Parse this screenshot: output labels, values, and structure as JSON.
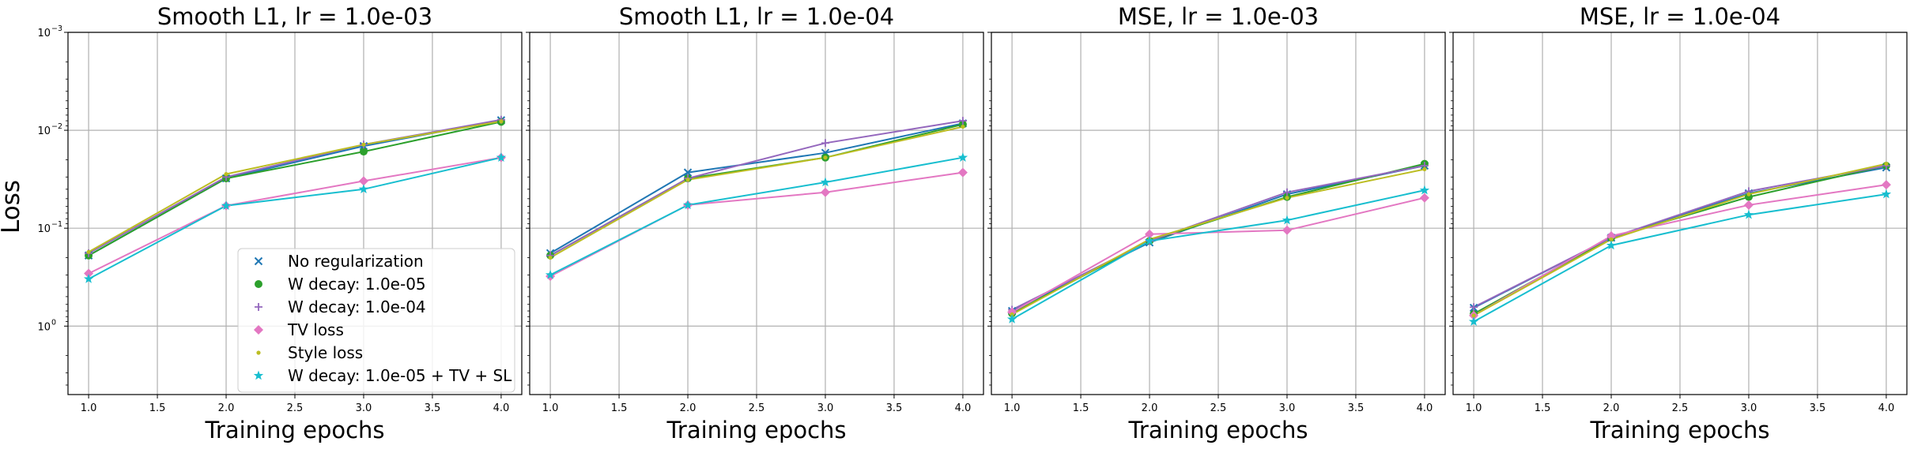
{
  "figure": {
    "ylabel": "Loss",
    "xlabel": "Training epochs",
    "xticks": [
      "1.0",
      "1.5",
      "2.0",
      "2.5",
      "3.0",
      "3.5",
      "4.0"
    ],
    "yticks": [
      {
        "exp": 0,
        "label": "10",
        "sup": "0"
      },
      {
        "exp": -1,
        "label": "10",
        "sup": "−1"
      },
      {
        "exp": -2,
        "label": "10",
        "sup": "−2"
      },
      {
        "exp": -3,
        "label": "10",
        "sup": "−3"
      }
    ]
  },
  "legend": {
    "location": "lower right of first panel",
    "entries": [
      {
        "label": "No regularization",
        "color": "#1f77b4",
        "marker": "x"
      },
      {
        "label": "W decay: 1.0e-05",
        "color": "#2ca02c",
        "marker": "o"
      },
      {
        "label": "W decay: 1.0e-04",
        "color": "#9467bd",
        "marker": "+"
      },
      {
        "label": "TV loss",
        "color": "#e377c2",
        "marker": "D"
      },
      {
        "label": "Style loss",
        "color": "#bcbd22",
        "marker": "."
      },
      {
        "label": "W decay: 1.0e-05 + TV + SL",
        "color": "#17becf",
        "marker": "*"
      }
    ]
  },
  "chart_data": [
    {
      "type": "line",
      "title": "Smooth L1, lr = 1.0e-03",
      "xlabel": "Training epochs",
      "ylabel": "Loss",
      "yscale": "log (inverted: 10^0 at bottom, 10^-3 at top)",
      "xlim": [
        0.85,
        4.15
      ],
      "ylim": [
        5,
        0.001
      ],
      "grid": true,
      "x": [
        1,
        2,
        3,
        4
      ],
      "series": [
        {
          "name": "No regularization",
          "values": [
            0.19,
            0.031,
            0.0145,
            0.0079
          ]
        },
        {
          "name": "W decay: 1.0e-05",
          "values": [
            0.19,
            0.031,
            0.0165,
            0.0082
          ]
        },
        {
          "name": "W decay: 1.0e-04",
          "values": [
            0.18,
            0.03,
            0.014,
            0.0078
          ]
        },
        {
          "name": "TV loss",
          "values": [
            0.29,
            0.059,
            0.033,
            0.019
          ]
        },
        {
          "name": "Style loss",
          "values": [
            0.175,
            0.028,
            0.014,
            0.0081
          ]
        },
        {
          "name": "W decay: 1.0e-05 + TV + SL",
          "values": [
            0.33,
            0.059,
            0.04,
            0.019
          ]
        }
      ]
    },
    {
      "type": "line",
      "title": "Smooth L1, lr = 1.0e-04",
      "xlabel": "Training epochs",
      "ylabel": "Loss",
      "yscale": "log (inverted)",
      "xlim": [
        0.85,
        4.15
      ],
      "ylim": [
        5,
        0.001
      ],
      "grid": true,
      "x": [
        1,
        2,
        3,
        4
      ],
      "series": [
        {
          "name": "No regularization",
          "values": [
            0.18,
            0.027,
            0.017,
            0.0085
          ]
        },
        {
          "name": "W decay: 1.0e-05",
          "values": [
            0.19,
            0.031,
            0.019,
            0.0087
          ]
        },
        {
          "name": "W decay: 1.0e-04",
          "values": [
            0.19,
            0.031,
            0.0135,
            0.008
          ]
        },
        {
          "name": "TV loss",
          "values": [
            0.31,
            0.058,
            0.043,
            0.027
          ]
        },
        {
          "name": "Style loss",
          "values": [
            0.2,
            0.032,
            0.019,
            0.0092
          ]
        },
        {
          "name": "W decay: 1.0e-05 + TV + SL",
          "values": [
            0.3,
            0.058,
            0.034,
            0.019
          ]
        }
      ]
    },
    {
      "type": "line",
      "title": "MSE, lr = 1.0e-03",
      "xlabel": "Training epochs",
      "ylabel": "Loss",
      "yscale": "log (inverted)",
      "xlim": [
        0.85,
        4.15
      ],
      "ylim": [
        5,
        0.001
      ],
      "grid": true,
      "x": [
        1,
        2,
        3,
        4
      ],
      "series": [
        {
          "name": "No regularization",
          "values": [
            0.7,
            0.14,
            0.045,
            0.023
          ]
        },
        {
          "name": "W decay: 1.0e-05",
          "values": [
            0.74,
            0.135,
            0.048,
            0.022
          ]
        },
        {
          "name": "W decay: 1.0e-04",
          "values": [
            0.68,
            0.135,
            0.043,
            0.023
          ]
        },
        {
          "name": "TV loss",
          "values": [
            0.72,
            0.115,
            0.105,
            0.049
          ]
        },
        {
          "name": "Style loss",
          "values": [
            0.76,
            0.13,
            0.049,
            0.025
          ]
        },
        {
          "name": "W decay: 1.0e-05 + TV + SL",
          "values": [
            0.85,
            0.135,
            0.083,
            0.041
          ]
        }
      ]
    },
    {
      "type": "line",
      "title": "MSE, lr = 1.0e-04",
      "xlabel": "Training epochs",
      "ylabel": "Loss",
      "yscale": "log (inverted)",
      "xlim": [
        0.85,
        4.15
      ],
      "ylim": [
        5,
        0.001
      ],
      "grid": true,
      "x": [
        1,
        2,
        3,
        4
      ],
      "series": [
        {
          "name": "No regularization",
          "values": [
            0.65,
            0.125,
            0.044,
            0.024
          ]
        },
        {
          "name": "W decay: 1.0e-05",
          "values": [
            0.75,
            0.125,
            0.048,
            0.023
          ]
        },
        {
          "name": "W decay: 1.0e-04",
          "values": [
            0.64,
            0.125,
            0.042,
            0.023
          ]
        },
        {
          "name": "TV loss",
          "values": [
            0.78,
            0.12,
            0.058,
            0.036
          ]
        },
        {
          "name": "Style loss",
          "values": [
            0.78,
            0.13,
            0.045,
            0.022
          ]
        },
        {
          "name": "W decay: 1.0e-05 + TV + SL",
          "values": [
            0.9,
            0.15,
            0.073,
            0.045
          ]
        }
      ]
    }
  ]
}
